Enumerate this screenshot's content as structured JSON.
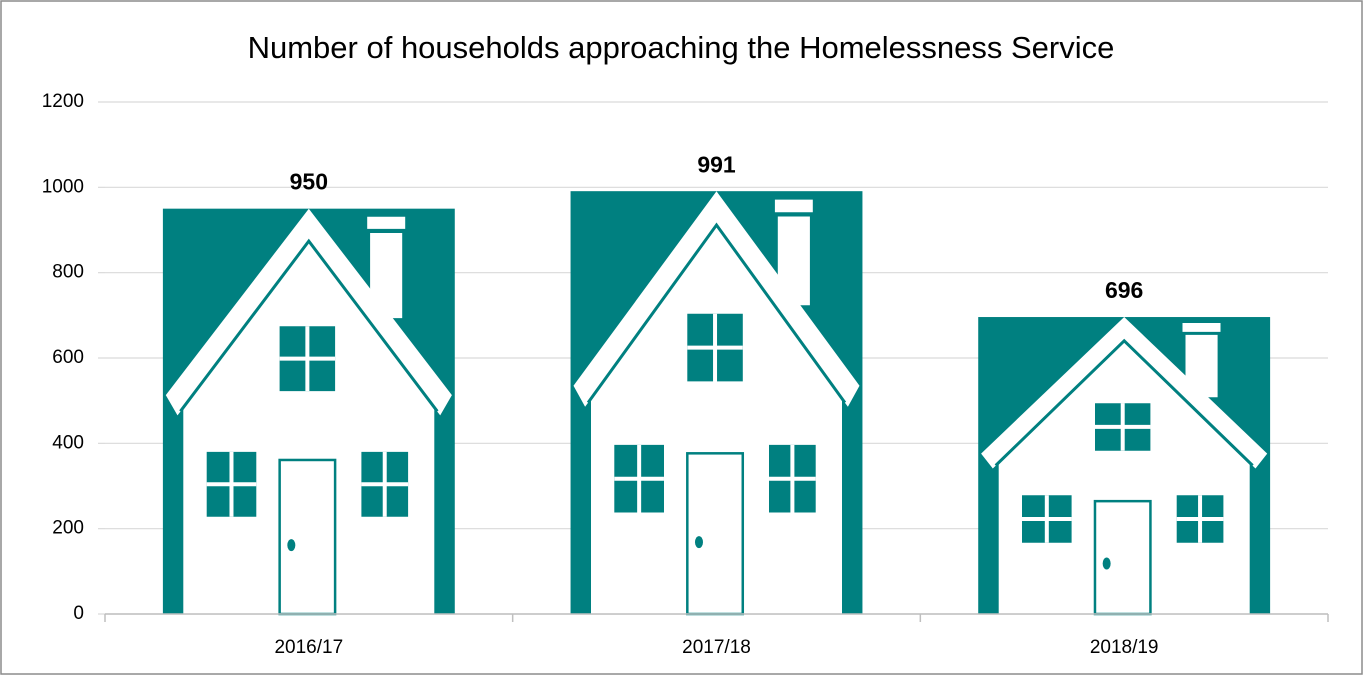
{
  "chart_data": {
    "type": "bar",
    "title": "Number of households approaching the Homelessness Service",
    "categories": [
      "2016/17",
      "2017/18",
      "2018/19"
    ],
    "values": [
      950,
      991,
      696
    ],
    "color": "#008080",
    "ylim": [
      0,
      1200
    ],
    "yticks": [
      0,
      200,
      400,
      600,
      800,
      1000,
      1200
    ],
    "grid": true
  }
}
